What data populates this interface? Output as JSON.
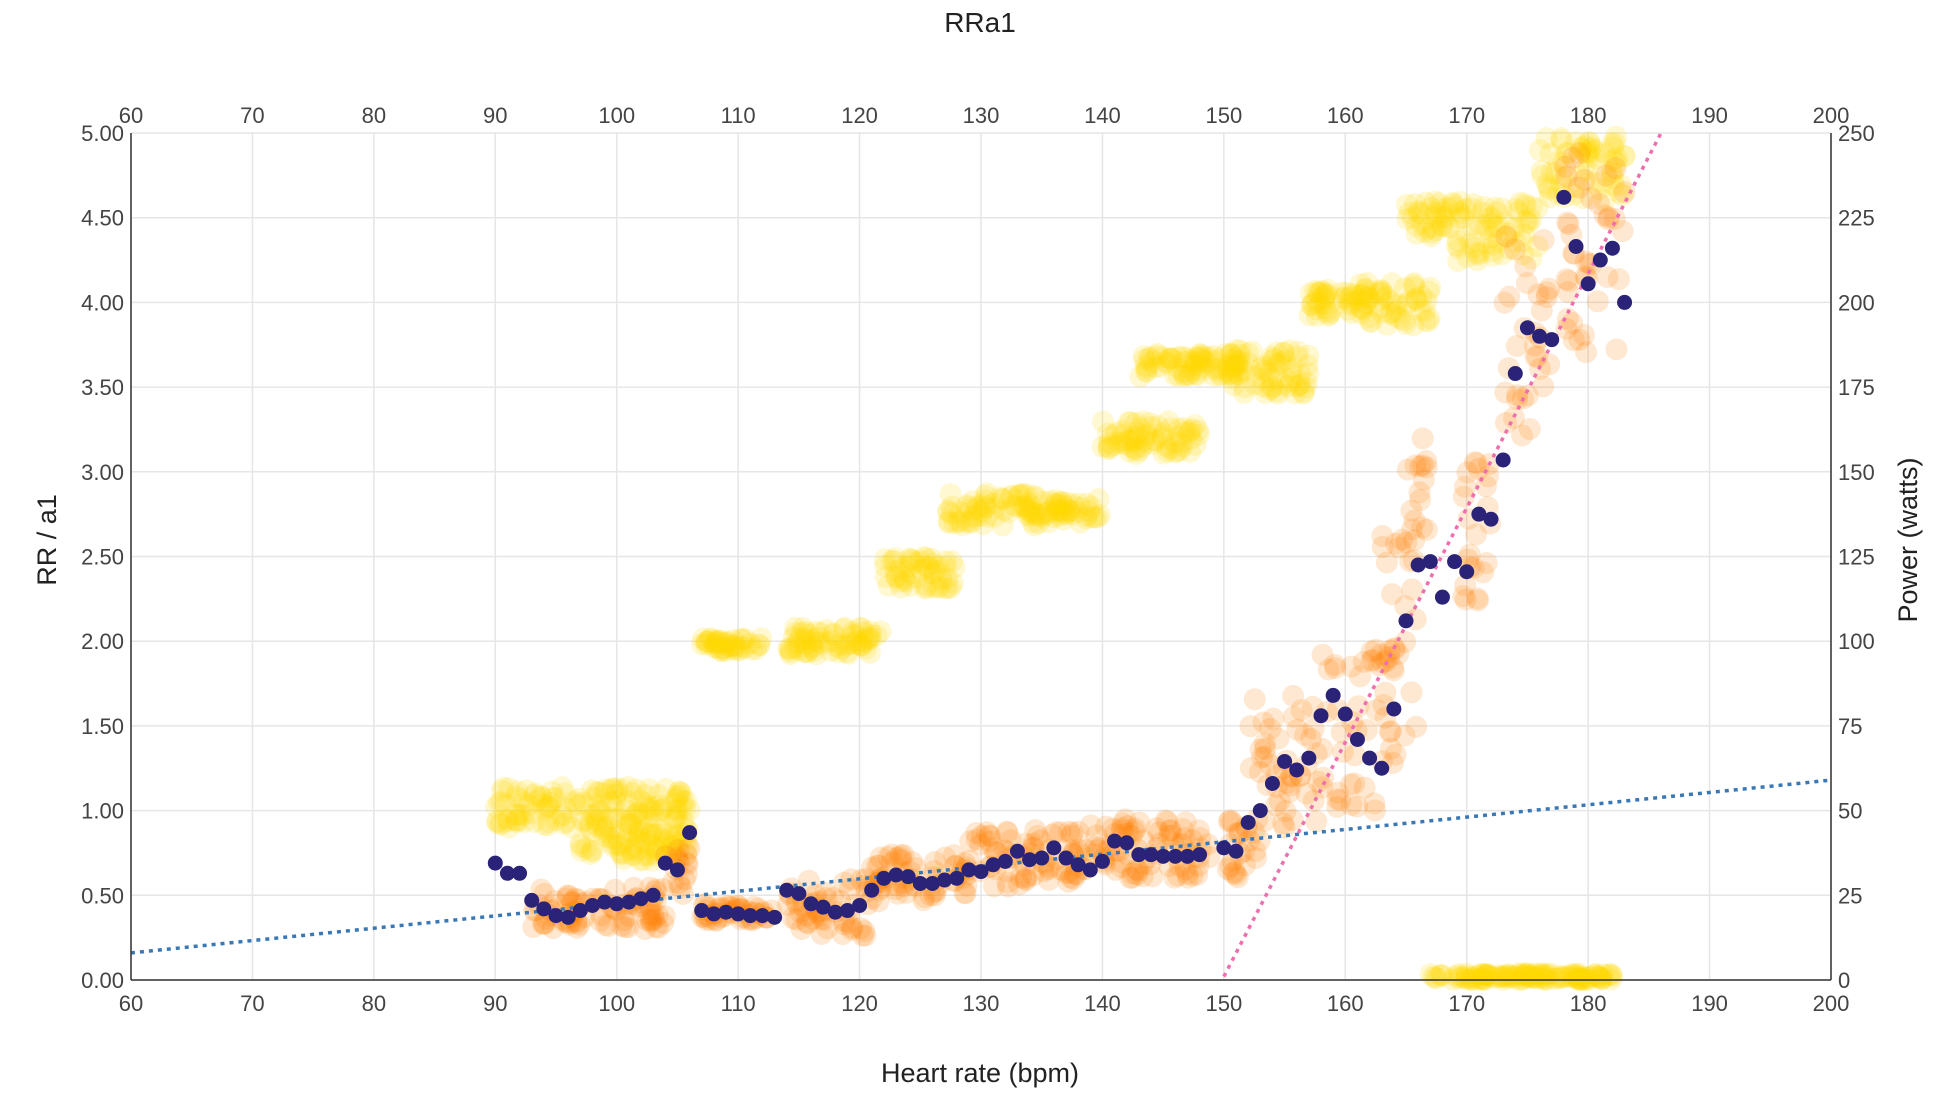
{
  "chart_data": {
    "type": "scatter",
    "title": "RRa1",
    "xlabel": "Heart rate (bpm)",
    "ylabel": "RR / a1",
    "y2label": "Power (watts)",
    "xlim": [
      60,
      200
    ],
    "ylim": [
      0,
      5
    ],
    "y2lim": [
      0,
      250
    ],
    "x_ticks": [
      60,
      70,
      80,
      90,
      100,
      110,
      120,
      130,
      140,
      150,
      160,
      170,
      180,
      190,
      200
    ],
    "y_ticks": [
      "0.00",
      "0.50",
      "1.00",
      "1.50",
      "2.00",
      "2.50",
      "3.00",
      "3.50",
      "4.00",
      "4.50",
      "5.00"
    ],
    "y2_ticks": [
      0,
      25,
      50,
      75,
      100,
      125,
      150,
      175,
      200,
      225,
      250
    ],
    "grid": true,
    "colors": {
      "power": "#ffd700",
      "raw": "#ff8000",
      "mean": "#2a2377",
      "trend_blue": "#3a78b5",
      "trend_pink": "#f06db0",
      "grid": "#e6e6e6"
    },
    "series": [
      {
        "kind": "mean",
        "axis": "y",
        "points": [
          [
            90,
            0.69
          ],
          [
            91,
            0.63
          ],
          [
            92,
            0.63
          ],
          [
            93,
            0.47
          ],
          [
            94,
            0.42
          ],
          [
            95,
            0.38
          ],
          [
            96,
            0.37
          ],
          [
            97,
            0.41
          ],
          [
            98,
            0.44
          ],
          [
            99,
            0.46
          ],
          [
            100,
            0.45
          ],
          [
            101,
            0.46
          ],
          [
            102,
            0.48
          ],
          [
            103,
            0.5
          ],
          [
            104,
            0.69
          ],
          [
            105,
            0.65
          ],
          [
            106,
            0.87
          ],
          [
            107,
            0.41
          ],
          [
            108,
            0.39
          ],
          [
            109,
            0.4
          ],
          [
            110,
            0.39
          ],
          [
            111,
            0.38
          ],
          [
            112,
            0.38
          ],
          [
            113,
            0.37
          ],
          [
            114,
            0.53
          ],
          [
            115,
            0.51
          ],
          [
            116,
            0.45
          ],
          [
            117,
            0.43
          ],
          [
            118,
            0.4
          ],
          [
            119,
            0.41
          ],
          [
            120,
            0.44
          ],
          [
            121,
            0.53
          ],
          [
            122,
            0.6
          ],
          [
            123,
            0.62
          ],
          [
            124,
            0.61
          ],
          [
            125,
            0.57
          ],
          [
            126,
            0.57
          ],
          [
            127,
            0.59
          ],
          [
            128,
            0.6
          ],
          [
            129,
            0.65
          ],
          [
            130,
            0.64
          ],
          [
            131,
            0.68
          ],
          [
            132,
            0.7
          ],
          [
            133,
            0.76
          ],
          [
            134,
            0.71
          ],
          [
            135,
            0.72
          ],
          [
            136,
            0.78
          ],
          [
            137,
            0.72
          ],
          [
            138,
            0.68
          ],
          [
            139,
            0.65
          ],
          [
            140,
            0.7
          ],
          [
            141,
            0.82
          ],
          [
            142,
            0.81
          ],
          [
            143,
            0.74
          ],
          [
            144,
            0.74
          ],
          [
            145,
            0.73
          ],
          [
            146,
            0.73
          ],
          [
            147,
            0.73
          ],
          [
            148,
            0.74
          ],
          [
            150,
            0.78
          ],
          [
            151,
            0.76
          ],
          [
            152,
            0.93
          ],
          [
            153,
            1.0
          ],
          [
            154,
            1.16
          ],
          [
            155,
            1.29
          ],
          [
            156,
            1.24
          ],
          [
            157,
            1.31
          ],
          [
            158,
            1.56
          ],
          [
            159,
            1.68
          ],
          [
            160,
            1.57
          ],
          [
            161,
            1.42
          ],
          [
            162,
            1.31
          ],
          [
            163,
            1.25
          ],
          [
            164,
            1.6
          ],
          [
            165,
            2.12
          ],
          [
            166,
            2.45
          ],
          [
            167,
            2.47
          ],
          [
            168,
            2.26
          ],
          [
            169,
            2.47
          ],
          [
            170,
            2.41
          ],
          [
            171,
            2.75
          ],
          [
            172,
            2.72
          ],
          [
            173,
            3.07
          ],
          [
            174,
            3.58
          ],
          [
            175,
            3.85
          ],
          [
            176,
            3.8
          ],
          [
            177,
            3.78
          ],
          [
            178,
            4.62
          ],
          [
            179,
            4.33
          ],
          [
            180,
            4.11
          ],
          [
            181,
            4.25
          ],
          [
            182,
            4.32
          ],
          [
            183,
            4.0
          ]
        ]
      },
      {
        "kind": "raw",
        "axis": "y",
        "clusters": [
          {
            "x": [
              93,
              104
            ],
            "y": [
              0.3,
              0.55
            ]
          },
          {
            "x": [
              104,
              106
            ],
            "y": [
              0.5,
              0.8
            ]
          },
          {
            "x": [
              107,
              113
            ],
            "y": [
              0.35,
              0.45
            ]
          },
          {
            "x": [
              114,
              121
            ],
            "y": [
              0.25,
              0.6
            ]
          },
          {
            "x": [
              121,
              129
            ],
            "y": [
              0.45,
              0.75
            ]
          },
          {
            "x": [
              129,
              138
            ],
            "y": [
              0.55,
              0.9
            ]
          },
          {
            "x": [
              138,
              149
            ],
            "y": [
              0.6,
              0.95
            ]
          },
          {
            "x": [
              150,
              153
            ],
            "y": [
              0.6,
              0.95
            ]
          },
          {
            "x": [
              152,
              158
            ],
            "y": [
              0.9,
              1.7
            ]
          },
          {
            "x": [
              158,
              164
            ],
            "y": [
              1.0,
              1.95
            ]
          },
          {
            "x": [
              163,
              166
            ],
            "y": [
              1.2,
              2.8
            ]
          },
          {
            "x": [
              165,
              167
            ],
            "y": [
              2.1,
              3.2
            ]
          },
          {
            "x": [
              169,
              172
            ],
            "y": [
              2.2,
              3.1
            ]
          },
          {
            "x": [
              173,
              177
            ],
            "y": [
              3.2,
              4.4
            ]
          },
          {
            "x": [
              178,
              183
            ],
            "y": [
              3.7,
              4.9
            ]
          }
        ]
      },
      {
        "kind": "power",
        "axis": "y2",
        "clusters": [
          {
            "x": [
              90,
              106
            ],
            "y": [
              45,
              57
            ]
          },
          {
            "x": [
              97,
              106
            ],
            "y": [
              35,
              45
            ]
          },
          {
            "x": [
              107,
              112
            ],
            "y": [
              97,
              101
            ]
          },
          {
            "x": [
              114,
              122
            ],
            "y": [
              96,
              104
            ]
          },
          {
            "x": [
              122,
              128
            ],
            "y": [
              115,
              125
            ]
          },
          {
            "x": [
              127,
              135
            ],
            "y": [
              134,
              144
            ]
          },
          {
            "x": [
              135,
              140
            ],
            "y": [
              135,
              142
            ]
          },
          {
            "x": [
              140,
              148
            ],
            "y": [
              155,
              165
            ]
          },
          {
            "x": [
              143,
              152
            ],
            "y": [
              178,
              185
            ]
          },
          {
            "x": [
              150,
              157
            ],
            "y": [
              173,
              186
            ]
          },
          {
            "x": [
              157,
              162
            ],
            "y": [
              196,
              204
            ]
          },
          {
            "x": [
              161,
              167
            ],
            "y": [
              193,
              206
            ]
          },
          {
            "x": [
              165,
              169
            ],
            "y": [
              219,
              230
            ]
          },
          {
            "x": [
              169,
              176
            ],
            "y": [
              212,
              230
            ]
          },
          {
            "x": [
              176,
              183
            ],
            "y": [
              230,
              249
            ]
          },
          {
            "x": [
              167,
              182
            ],
            "y": [
              0,
              2
            ]
          }
        ]
      }
    ],
    "trendlines": [
      {
        "color": "trend_blue",
        "from": [
          60,
          0.16
        ],
        "to": [
          200,
          1.18
        ]
      },
      {
        "color": "trend_pink",
        "from": [
          150,
          0.02
        ],
        "to": [
          186,
          5.0
        ]
      }
    ]
  }
}
